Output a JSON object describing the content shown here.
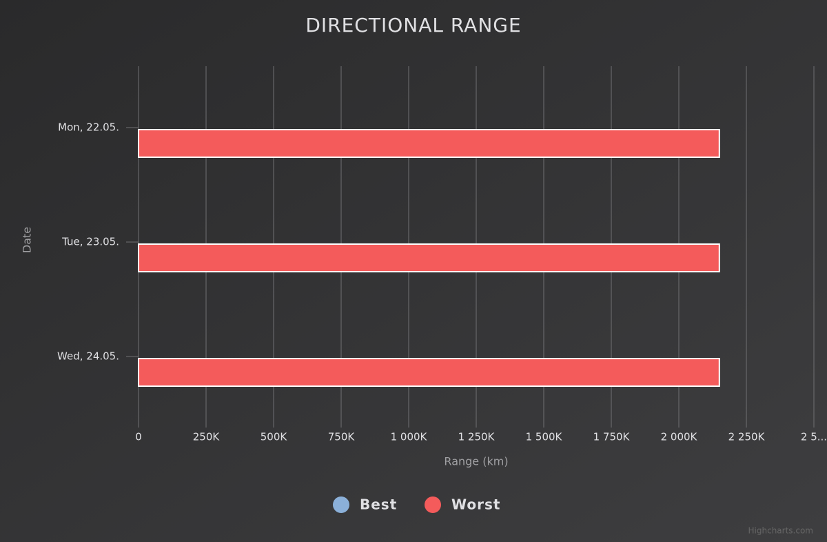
{
  "chart_data": {
    "type": "bar",
    "title": "DIRECTIONAL RANGE",
    "categories": [
      "Mon, 22.05.",
      "Tue, 23.05.",
      "Wed, 24.05."
    ],
    "series": [
      {
        "name": "Best",
        "color": "#8bb0d9",
        "values": [
          null,
          null,
          null
        ]
      },
      {
        "name": "Worst",
        "color": "#f45b5b",
        "values": [
          2150000,
          2150000,
          2150000
        ]
      }
    ],
    "x_axis_label": "Date",
    "y_axis_label": "Range (km)",
    "ylim": [
      0,
      2500000
    ],
    "yticks": [
      0,
      {
        "value": 250000,
        "label": "250K"
      },
      {
        "value": 500000,
        "label": "500K"
      },
      {
        "value": 750000,
        "label": "750K"
      },
      {
        "value": 1000000,
        "label": "1 000K"
      },
      {
        "value": 1250000,
        "label": "1 250K"
      },
      {
        "value": 1500000,
        "label": "1 500K"
      },
      {
        "value": 1750000,
        "label": "1 750K"
      },
      {
        "value": 2000000,
        "label": "2 000K"
      },
      {
        "value": 2250000,
        "label": "2 250K"
      },
      {
        "value": 2500000,
        "label": "2 5..."
      }
    ],
    "grid": true,
    "legend": "bottom",
    "credits": "Highcharts.com"
  }
}
